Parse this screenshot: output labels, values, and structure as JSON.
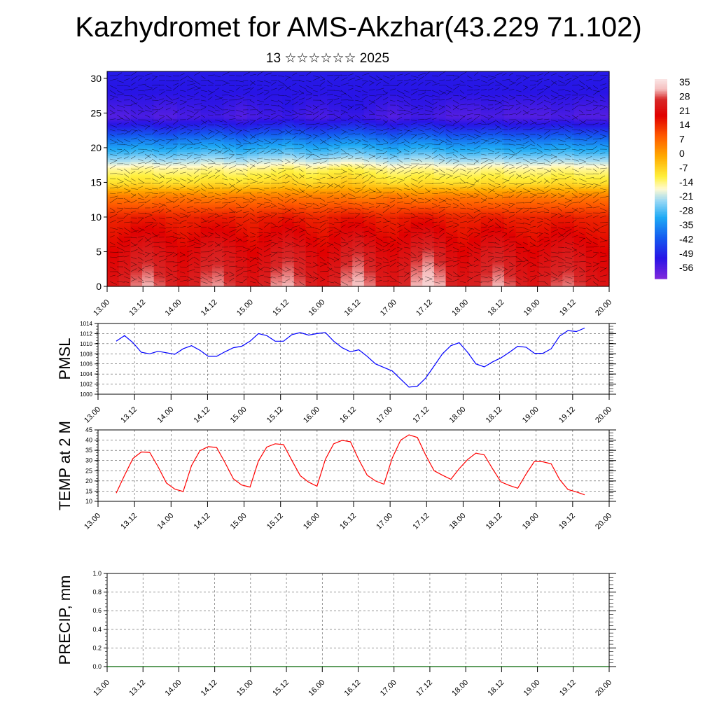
{
  "title": "Kazhydromet for AMS-Akzhar(43.229 71.102)",
  "subtitle": "13 ☆☆☆☆☆☆ 2025",
  "chart_data": [
    {
      "type": "heatmap",
      "title": "Kazhydromet for AMS-Akzhar(43.229 71.102)",
      "subtitle": "13 ☆☆☆☆☆☆ 2025",
      "x_tick_labels": [
        "13.00",
        "13.12",
        "14.00",
        "14.12",
        "15.00",
        "15.12",
        "16.00",
        "16.12",
        "17.00",
        "17.12",
        "18.00",
        "18.12",
        "19.00",
        "19.12",
        "20.00"
      ],
      "y_tick_labels": [
        "0",
        "5",
        "10",
        "15",
        "20",
        "25",
        "30"
      ],
      "ylim": [
        0,
        31
      ],
      "colorbar_labels": [
        "35",
        "28",
        "21",
        "14",
        "7",
        "0",
        "-7",
        "-14",
        "-21",
        "-28",
        "-35",
        "-42",
        "-49",
        "-56"
      ],
      "colorbar_range": [
        -60,
        38
      ],
      "rows_by_level": [
        {
          "level": 0,
          "values": [
            24,
            27,
            31,
            33,
            30,
            27,
            24,
            27,
            31,
            32,
            29,
            26,
            24,
            27,
            32,
            33,
            30,
            26,
            24,
            27,
            32,
            34,
            31,
            26,
            25,
            28,
            33,
            36,
            33,
            27,
            25,
            27,
            30,
            33,
            30,
            26,
            24,
            27,
            30,
            31,
            29,
            25,
            24
          ]
        },
        {
          "level": 5,
          "values": [
            20,
            22,
            25,
            26,
            24,
            22,
            20,
            22,
            25,
            26,
            24,
            22,
            20,
            22,
            25,
            27,
            25,
            22,
            20,
            22,
            26,
            28,
            25,
            22,
            21,
            23,
            27,
            29,
            26,
            22,
            20,
            22,
            25,
            26,
            24,
            21,
            20,
            22,
            24,
            25,
            23,
            21,
            20
          ]
        },
        {
          "level": 10,
          "values": [
            16,
            16,
            17,
            17,
            17,
            16,
            16,
            16,
            17,
            17,
            17,
            16,
            16,
            17,
            17,
            18,
            17,
            16,
            16,
            17,
            18,
            18,
            17,
            16,
            16,
            17,
            18,
            18,
            17,
            16,
            16,
            16,
            17,
            17,
            16,
            16,
            16,
            16,
            17,
            17,
            16,
            16,
            16
          ]
        },
        {
          "level": 13,
          "values": [
            6,
            6,
            5,
            5,
            6,
            6,
            6,
            6,
            5,
            5,
            6,
            6,
            6,
            6,
            6,
            6,
            6,
            6,
            6,
            6,
            6,
            5,
            5,
            6,
            7,
            6,
            5,
            5,
            6,
            6,
            6,
            6,
            5,
            5,
            6,
            6,
            6,
            6,
            5,
            5,
            6,
            6,
            6
          ]
        },
        {
          "level": 15,
          "values": [
            -8,
            -8,
            -7,
            -7,
            -8,
            -8,
            -8,
            -8,
            -7,
            -7,
            -8,
            -8,
            -7,
            -7,
            -6,
            -5,
            -6,
            -7,
            -6,
            -5,
            -4,
            -5,
            -6,
            -7,
            -8,
            -8,
            -7,
            -7,
            -8,
            -8,
            -8,
            -8,
            -7,
            -7,
            -8,
            -8,
            -8,
            -8,
            -7,
            -7,
            -8,
            -8,
            -8
          ]
        },
        {
          "level": 17,
          "values": [
            -14,
            -14,
            -13,
            -13,
            -14,
            -14,
            -14,
            -14,
            -13,
            -13,
            -14,
            -14,
            -13,
            -13,
            -12,
            -11,
            -12,
            -13,
            -12,
            -11,
            -10,
            -11,
            -12,
            -13,
            -14,
            -14,
            -13,
            -13,
            -14,
            -14,
            -14,
            -14,
            -13,
            -13,
            -14,
            -14,
            -14,
            -14,
            -13,
            -13,
            -14,
            -14,
            -14
          ]
        },
        {
          "level": 19,
          "values": [
            -26,
            -26,
            -25,
            -25,
            -26,
            -26,
            -25,
            -25,
            -24,
            -24,
            -25,
            -26,
            -25,
            -24,
            -24,
            -23,
            -24,
            -25,
            -25,
            -24,
            -23,
            -23,
            -24,
            -25,
            -26,
            -25,
            -24,
            -24,
            -25,
            -26,
            -26,
            -26,
            -25,
            -25,
            -26,
            -26,
            -26,
            -26,
            -25,
            -25,
            -26,
            -26,
            -26
          ]
        },
        {
          "level": 21,
          "values": [
            -36,
            -36,
            -35,
            -35,
            -36,
            -36,
            -35,
            -35,
            -34,
            -34,
            -35,
            -36,
            -35,
            -34,
            -34,
            -33,
            -34,
            -35,
            -35,
            -34,
            -33,
            -33,
            -34,
            -35,
            -36,
            -35,
            -34,
            -34,
            -35,
            -36,
            -36,
            -36,
            -35,
            -35,
            -36,
            -36,
            -36,
            -36,
            -35,
            -35,
            -36,
            -36,
            -36
          ]
        },
        {
          "level": 23,
          "values": [
            -48,
            -48,
            -47,
            -47,
            -48,
            -48,
            -47,
            -47,
            -46,
            -46,
            -47,
            -48,
            -47,
            -46,
            -46,
            -45,
            -46,
            -47,
            -47,
            -46,
            -45,
            -45,
            -46,
            -47,
            -48,
            -47,
            -46,
            -46,
            -47,
            -48,
            -48,
            -48,
            -47,
            -47,
            -48,
            -48,
            -48,
            -48,
            -47,
            -47,
            -48,
            -48,
            -48
          ]
        },
        {
          "level": 24.5,
          "values": [
            -55,
            -55,
            -54,
            -54,
            -55,
            -55,
            -54,
            -54,
            -53,
            -53,
            -54,
            -55,
            -54,
            -53,
            -53,
            -52,
            -53,
            -54,
            -54,
            -53,
            -52,
            -52,
            -53,
            -54,
            -55,
            -54,
            -53,
            -53,
            -54,
            -55,
            -55,
            -55,
            -54,
            -54,
            -55,
            -55,
            -55,
            -55,
            -54,
            -54,
            -55,
            -55,
            -55
          ]
        },
        {
          "level": 26,
          "values": [
            -53,
            -53,
            -52,
            -52,
            -53,
            -53,
            -52,
            -52,
            -51,
            -51,
            -52,
            -53,
            -52,
            -51,
            -51,
            -50,
            -51,
            -52,
            -52,
            -51,
            -50,
            -50,
            -51,
            -52,
            -53,
            -52,
            -51,
            -51,
            -52,
            -53,
            -53,
            -53,
            -52,
            -52,
            -53,
            -53,
            -53,
            -53,
            -52,
            -52,
            -53,
            -53,
            -53
          ]
        },
        {
          "level": 28,
          "values": [
            -50,
            -50,
            -50,
            -50,
            -50,
            -50,
            -50,
            -50,
            -50,
            -50,
            -50,
            -50,
            -50,
            -50,
            -50,
            -50,
            -50,
            -50,
            -50,
            -50,
            -50,
            -50,
            -50,
            -50,
            -50,
            -50,
            -50,
            -50,
            -50,
            -50,
            -50,
            -50,
            -50,
            -50,
            -50,
            -50,
            -50,
            -50,
            -50,
            -50,
            -50,
            -50,
            -50
          ]
        },
        {
          "level": 31,
          "values": [
            -49,
            -49,
            -49,
            -49,
            -49,
            -49,
            -49,
            -49,
            -49,
            -49,
            -49,
            -49,
            -49,
            -49,
            -49,
            -49,
            -49,
            -49,
            -49,
            -49,
            -49,
            -49,
            -49,
            -49,
            -49,
            -49,
            -49,
            -49,
            -49,
            -49,
            -49,
            -49,
            -49,
            -49,
            -49,
            -49,
            -49,
            -49,
            -49,
            -49,
            -49,
            -49,
            -49
          ]
        }
      ]
    },
    {
      "type": "line",
      "ylabel": "PMSL",
      "x_tick_labels": [
        "13.00",
        "13.12",
        "14.00",
        "14.12",
        "15.00",
        "15.12",
        "16.00",
        "16.12",
        "17.00",
        "17.12",
        "18.00",
        "18.12",
        "19.00",
        "19.12",
        "20.00"
      ],
      "y_tick_labels": [
        "1000",
        "1002",
        "1004",
        "1006",
        "1008",
        "1010",
        "1012",
        "1014"
      ],
      "ylim": [
        1000,
        1014
      ],
      "series": [
        {
          "color": "#0000ff",
          "values": [
            1010.5,
            1011.6,
            1010.2,
            1008.3,
            1008.0,
            1008.5,
            1008.2,
            1007.9,
            1009.0,
            1009.6,
            1008.7,
            1007.5,
            1007.5,
            1008.4,
            1009.2,
            1009.5,
            1010.5,
            1012.0,
            1011.6,
            1010.5,
            1010.5,
            1011.8,
            1012.2,
            1011.7,
            1012.0,
            1012.2,
            1010.5,
            1009.2,
            1008.4,
            1008.8,
            1007.5,
            1006.0,
            1005.3,
            1004.6,
            1003.0,
            1001.4,
            1001.6,
            1003.2,
            1005.6,
            1008.0,
            1009.6,
            1010.2,
            1008.3,
            1006.0,
            1005.4,
            1006.4,
            1007.2,
            1008.3,
            1009.5,
            1009.3,
            1008.1,
            1008.1,
            1009.0,
            1011.5,
            1012.6,
            1012.4,
            1013.1
          ]
        }
      ]
    },
    {
      "type": "line",
      "ylabel": "TEMP at 2 M",
      "x_tick_labels": [
        "13.00",
        "13.12",
        "14.00",
        "14.12",
        "15.00",
        "15.12",
        "16.00",
        "16.12",
        "17.00",
        "17.12",
        "18.00",
        "18.12",
        "19.00",
        "19.12",
        "20.00"
      ],
      "y_tick_labels": [
        "10",
        "15",
        "20",
        "25",
        "30",
        "35",
        "40",
        "45"
      ],
      "ylim": [
        10,
        45
      ],
      "series": [
        {
          "color": "#ff0000",
          "values": [
            14.0,
            22.8,
            31.0,
            34.2,
            34.0,
            27.0,
            19.0,
            16.0,
            14.8,
            27.5,
            34.8,
            36.8,
            36.4,
            29.0,
            21.0,
            18.0,
            17.0,
            29.8,
            36.6,
            38.2,
            37.8,
            30.0,
            22.6,
            19.4,
            17.4,
            30.6,
            38.2,
            39.9,
            39.2,
            30.4,
            22.8,
            20.0,
            18.4,
            31.2,
            40.0,
            42.6,
            41.3,
            32.6,
            25.0,
            22.8,
            20.8,
            26.0,
            30.5,
            33.6,
            32.8,
            25.9,
            19.5,
            17.8,
            16.4,
            23.4,
            29.6,
            29.4,
            28.4,
            20.7,
            15.8,
            14.6,
            13.2
          ]
        }
      ]
    },
    {
      "type": "line",
      "ylabel": "PRECIP, mm",
      "x_tick_labels": [
        "13.00",
        "13.12",
        "14.00",
        "14.12",
        "15.00",
        "15.12",
        "16.00",
        "16.12",
        "17.00",
        "17.12",
        "18.00",
        "18.12",
        "19.00",
        "19.12",
        "20.00"
      ],
      "y_tick_labels": [
        "0.0",
        "0.2",
        "0.4",
        "0.6",
        "0.8",
        "1.0"
      ],
      "ylim": [
        0,
        1
      ],
      "series": [
        {
          "color": "#006400",
          "values": [
            0,
            0,
            0,
            0,
            0,
            0,
            0,
            0,
            0,
            0,
            0,
            0,
            0,
            0,
            0,
            0,
            0,
            0,
            0,
            0,
            0,
            0,
            0,
            0,
            0,
            0,
            0,
            0,
            0,
            0,
            0,
            0,
            0,
            0,
            0,
            0,
            0,
            0,
            0,
            0,
            0,
            0,
            0,
            0,
            0,
            0,
            0,
            0,
            0,
            0,
            0,
            0,
            0,
            0,
            0,
            0,
            0
          ]
        }
      ]
    }
  ]
}
